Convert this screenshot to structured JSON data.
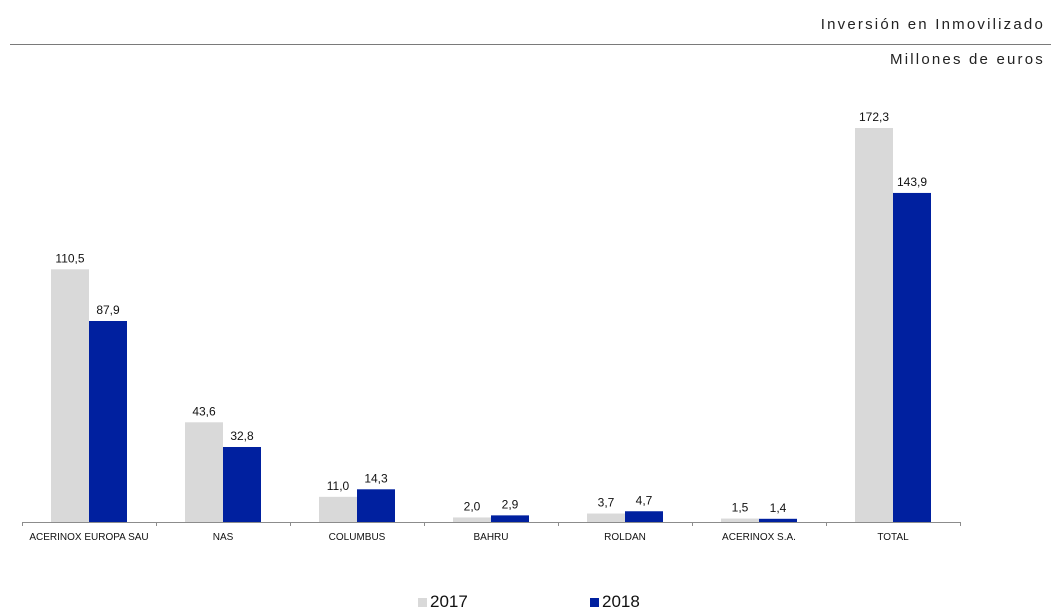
{
  "header": {
    "title": "Inversión en Inmovilizado",
    "subtitle": "Millones de euros"
  },
  "chart_data": {
    "type": "bar",
    "title": "Inversión en Inmovilizado",
    "subtitle": "Millones de euros",
    "categories": [
      "ACERINOX EUROPA SAU",
      "NAS",
      "COLUMBUS",
      "BAHRU",
      "ROLDAN",
      "ACERINOX S.A.",
      "TOTAL"
    ],
    "series": [
      {
        "name": "2017",
        "color": "#d9d9d9",
        "values": [
          110.5,
          43.6,
          11.0,
          2.0,
          3.7,
          1.5,
          172.3
        ],
        "labels": [
          "110,5",
          "43,6",
          "11,0",
          "2,0",
          "3,7",
          "1,5",
          "172,3"
        ]
      },
      {
        "name": "2018",
        "color": "#00209f",
        "values": [
          87.9,
          32.8,
          14.3,
          2.9,
          4.7,
          1.4,
          143.9
        ],
        "labels": [
          "87,9",
          "32,8",
          "14,3",
          "2,9",
          "4,7",
          "1,4",
          "143,9"
        ]
      }
    ],
    "ylim": [
      0,
      172.3
    ],
    "grid": false,
    "legend": "bottom-center"
  }
}
